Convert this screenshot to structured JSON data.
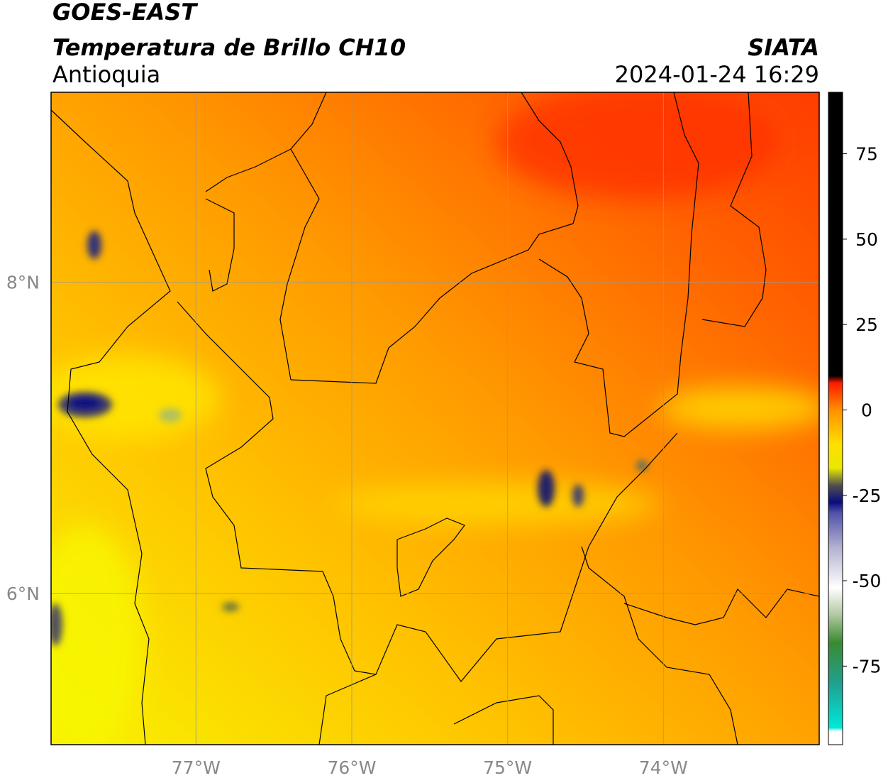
{
  "header": {
    "line1": "GOES-EAST",
    "line2": "Temperatura de Brillo CH10",
    "line3": "Antioquia",
    "source": "SIATA",
    "datetime": "2024-01-24 16:29"
  },
  "map": {
    "xlim": [
      -77.93,
      -73.0
    ],
    "ylim": [
      5.03,
      9.22
    ],
    "xticks": [
      {
        "value": -77,
        "label": "77°W"
      },
      {
        "value": -76,
        "label": "76°W"
      },
      {
        "value": -75,
        "label": "75°W"
      },
      {
        "value": -74,
        "label": "74°W"
      }
    ],
    "yticks": [
      {
        "value": 8,
        "label": "8°N"
      },
      {
        "value": 6,
        "label": "6°N"
      }
    ],
    "grid": true,
    "grid_color": "#999999"
  },
  "colorbar": {
    "lim": [
      -98,
      93
    ],
    "ticks": [
      75,
      50,
      25,
      0,
      -25,
      -50,
      -75
    ],
    "stops": [
      {
        "value": -98,
        "color": "#ffffff"
      },
      {
        "value": -94,
        "color": "#ffffff"
      },
      {
        "value": -93,
        "color": "#00e8d8"
      },
      {
        "value": -80,
        "color": "#20a090"
      },
      {
        "value": -68,
        "color": "#3a8a30"
      },
      {
        "value": -60,
        "color": "#b0c8a0"
      },
      {
        "value": -52,
        "color": "#ffffff"
      },
      {
        "value": -40,
        "color": "#b0b0d0"
      },
      {
        "value": -30,
        "color": "#5050a8"
      },
      {
        "value": -27,
        "color": "#0a0a80"
      },
      {
        "value": -22,
        "color": "#505050"
      },
      {
        "value": -17,
        "color": "#e8e800"
      },
      {
        "value": -10,
        "color": "#ffe000"
      },
      {
        "value": 0,
        "color": "#ff9000"
      },
      {
        "value": 8,
        "color": "#ff1800"
      },
      {
        "value": 10,
        "color": "#000000"
      },
      {
        "value": 93,
        "color": "#000000"
      }
    ]
  }
}
